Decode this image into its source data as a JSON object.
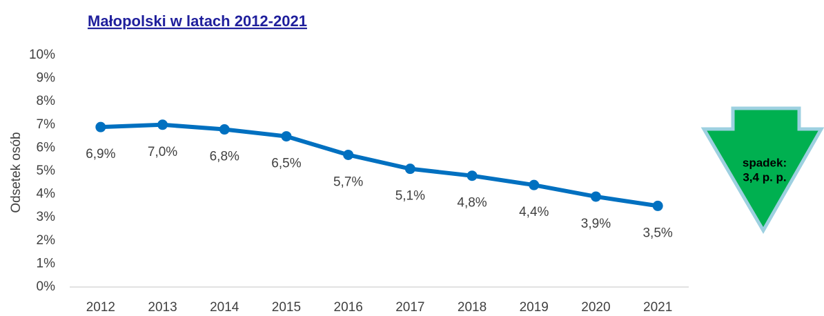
{
  "chart_data": {
    "type": "line",
    "title": "Małopolski w latach 2012-2021",
    "y_label": "Odsetek osób",
    "categories": [
      "2012",
      "2013",
      "2014",
      "2015",
      "2016",
      "2017",
      "2018",
      "2019",
      "2020",
      "2021"
    ],
    "values": [
      6.9,
      7.0,
      6.8,
      6.5,
      5.7,
      5.1,
      4.8,
      4.4,
      3.9,
      3.5
    ],
    "value_labels": [
      "6,9%",
      "7,0%",
      "6,8%",
      "6,5%",
      "5,7%",
      "5,1%",
      "4,8%",
      "4,4%",
      "3,9%",
      "3,5%"
    ],
    "color": "#0070c0",
    "ylim": [
      0,
      10
    ],
    "yticks": [
      {
        "value": 0,
        "label": "0%"
      },
      {
        "value": 1,
        "label": "1%"
      },
      {
        "value": 2,
        "label": "2%"
      },
      {
        "value": 3,
        "label": "3%"
      },
      {
        "value": 4,
        "label": "4%"
      },
      {
        "value": 5,
        "label": "5%"
      },
      {
        "value": 6,
        "label": "6%"
      },
      {
        "value": 7,
        "label": "7%"
      },
      {
        "value": 8,
        "label": "8%"
      },
      {
        "value": 9,
        "label": "9%"
      },
      {
        "value": 10,
        "label": "10%"
      }
    ],
    "grid": false,
    "annotations": [
      "spadek:",
      "3,4 p. p."
    ]
  }
}
